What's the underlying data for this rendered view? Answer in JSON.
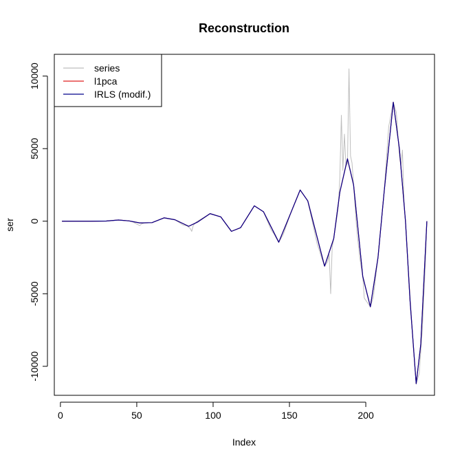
{
  "chart_data": {
    "type": "line",
    "title": "Reconstruction",
    "xlabel": "Index",
    "ylabel": "ser",
    "xlim": [
      -4,
      245
    ],
    "ylim": [
      -12000,
      11500
    ],
    "x_ticks": [
      0,
      50,
      100,
      150,
      200
    ],
    "x_tick_labels": [
      "0",
      "50",
      "100",
      "150",
      "200"
    ],
    "y_ticks": [
      -10000,
      -5000,
      0,
      5000,
      10000
    ],
    "y_tick_labels": [
      "-10000",
      "-5000",
      "0",
      "5000",
      "10000"
    ],
    "grid": false,
    "legend": {
      "position": "top-left",
      "entries": [
        {
          "label": "series",
          "color": "#bebebe"
        },
        {
          "label": "l1pca",
          "color": "#df1f1f"
        },
        {
          "label": "IRLS (modif.)",
          "color": "#00008b"
        }
      ]
    },
    "series": [
      {
        "name": "series",
        "color": "#bebebe",
        "points": [
          [
            1,
            0
          ],
          [
            20,
            0
          ],
          [
            30,
            10
          ],
          [
            38,
            80
          ],
          [
            45,
            20
          ],
          [
            48,
            -80
          ],
          [
            50,
            -200
          ],
          [
            52,
            -300
          ],
          [
            53,
            -200
          ],
          [
            55,
            -120
          ],
          [
            60,
            -100
          ],
          [
            68,
            230
          ],
          [
            75,
            100
          ],
          [
            80,
            -250
          ],
          [
            83,
            -330
          ],
          [
            85,
            -500
          ],
          [
            86,
            -700
          ],
          [
            87,
            -300
          ],
          [
            89,
            -50
          ],
          [
            98,
            520
          ],
          [
            105,
            300
          ],
          [
            112,
            -700
          ],
          [
            118,
            -450
          ],
          [
            127,
            1060
          ],
          [
            133,
            650
          ],
          [
            138,
            -600
          ],
          [
            140,
            -900
          ],
          [
            141,
            -1100
          ],
          [
            143,
            -1450
          ],
          [
            146,
            -900
          ],
          [
            151,
            600
          ],
          [
            157,
            2150
          ],
          [
            162,
            1400
          ],
          [
            168,
            -1500
          ],
          [
            171,
            -2500
          ],
          [
            173,
            -3100
          ],
          [
            175,
            -2800
          ],
          [
            176,
            -2300
          ],
          [
            177,
            -5000
          ],
          [
            178,
            -1800
          ],
          [
            179,
            -1200
          ],
          [
            181,
            200
          ],
          [
            182,
            1000
          ],
          [
            183,
            3000
          ],
          [
            184,
            7300
          ],
          [
            185,
            3500
          ],
          [
            186,
            6000
          ],
          [
            187,
            3800
          ],
          [
            188,
            4000
          ],
          [
            189,
            10500
          ],
          [
            190,
            4500
          ],
          [
            191,
            4000
          ],
          [
            192,
            2500
          ],
          [
            194,
            -500
          ],
          [
            196,
            -2500
          ],
          [
            198,
            -3800
          ],
          [
            199,
            -5300
          ],
          [
            201,
            -5600
          ],
          [
            203,
            -5900
          ],
          [
            205,
            -5200
          ],
          [
            208,
            -2500
          ],
          [
            212,
            2000
          ],
          [
            215,
            6500
          ],
          [
            218,
            8200
          ],
          [
            220,
            7500
          ],
          [
            222,
            4500
          ],
          [
            223,
            3800
          ],
          [
            224,
            4900
          ],
          [
            225,
            1500
          ],
          [
            228,
            -3500
          ],
          [
            231,
            -8500
          ],
          [
            233,
            -11200
          ],
          [
            235,
            -10500
          ],
          [
            237,
            -7500
          ],
          [
            239,
            -3000
          ],
          [
            240,
            0
          ]
        ]
      },
      {
        "name": "l1pca",
        "color": "#df1f1f",
        "points": [
          [
            1,
            0
          ],
          [
            20,
            0
          ],
          [
            30,
            10
          ],
          [
            38,
            80
          ],
          [
            45,
            20
          ],
          [
            52,
            -120
          ],
          [
            60,
            -100
          ],
          [
            68,
            230
          ],
          [
            75,
            100
          ],
          [
            84,
            -350
          ],
          [
            90,
            -50
          ],
          [
            98,
            520
          ],
          [
            105,
            300
          ],
          [
            112,
            -700
          ],
          [
            118,
            -450
          ],
          [
            127,
            1060
          ],
          [
            133,
            650
          ],
          [
            143,
            -1450
          ],
          [
            151,
            600
          ],
          [
            157,
            2150
          ],
          [
            162,
            1400
          ],
          [
            173,
            -3100
          ],
          [
            179,
            -1200
          ],
          [
            183,
            2000
          ],
          [
            188,
            4300
          ],
          [
            192,
            2500
          ],
          [
            198,
            -3800
          ],
          [
            203,
            -5900
          ],
          [
            208,
            -2500
          ],
          [
            212,
            2000
          ],
          [
            218,
            8200
          ],
          [
            222,
            5000
          ],
          [
            226,
            0
          ],
          [
            229,
            -5500
          ],
          [
            233,
            -11200
          ],
          [
            236,
            -8500
          ],
          [
            240,
            0
          ]
        ]
      },
      {
        "name": "IRLS (modif.)",
        "color": "#00008b",
        "points": [
          [
            1,
            0
          ],
          [
            20,
            0
          ],
          [
            30,
            10
          ],
          [
            38,
            80
          ],
          [
            45,
            20
          ],
          [
            52,
            -120
          ],
          [
            60,
            -100
          ],
          [
            68,
            230
          ],
          [
            75,
            100
          ],
          [
            84,
            -350
          ],
          [
            90,
            -50
          ],
          [
            98,
            520
          ],
          [
            105,
            300
          ],
          [
            112,
            -700
          ],
          [
            118,
            -450
          ],
          [
            127,
            1060
          ],
          [
            133,
            650
          ],
          [
            143,
            -1450
          ],
          [
            151,
            600
          ],
          [
            157,
            2150
          ],
          [
            162,
            1400
          ],
          [
            173,
            -3100
          ],
          [
            179,
            -1200
          ],
          [
            183,
            2000
          ],
          [
            188,
            4300
          ],
          [
            192,
            2500
          ],
          [
            198,
            -3800
          ],
          [
            203,
            -5900
          ],
          [
            208,
            -2500
          ],
          [
            212,
            2000
          ],
          [
            218,
            8200
          ],
          [
            222,
            5000
          ],
          [
            226,
            0
          ],
          [
            229,
            -5500
          ],
          [
            233,
            -11200
          ],
          [
            236,
            -8500
          ],
          [
            240,
            0
          ]
        ]
      }
    ]
  }
}
